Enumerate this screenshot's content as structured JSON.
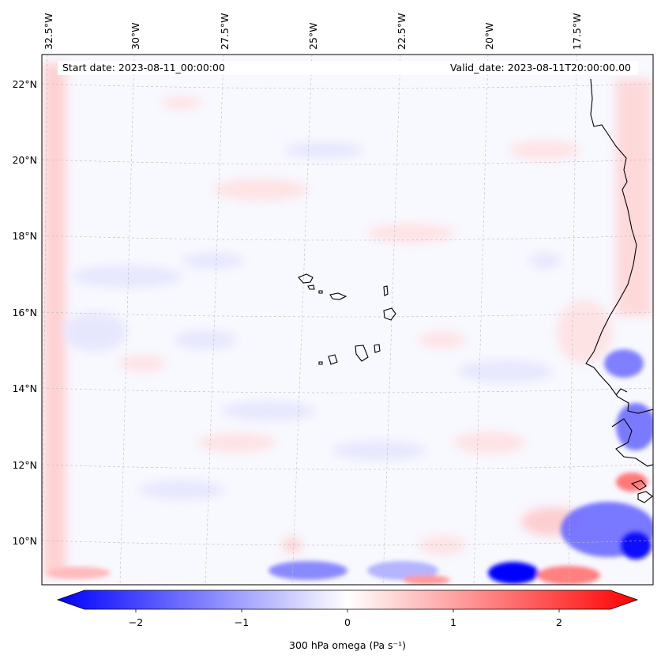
{
  "map": {
    "start_date": "Start date: 2023-08-11_00:00:00",
    "valid_date": "Valid_date: 2023-08-11T20:00:00.00",
    "lon_labels": [
      "32.5°W",
      "30°W",
      "27.5°W",
      "25°W",
      "22.5°W",
      "20°W",
      "17.5°W"
    ],
    "lat_labels": [
      "22°N",
      "20°N",
      "18°N",
      "16°N",
      "14°N",
      "12°N",
      "10°N"
    ],
    "colorbar": {
      "label": "300 hPa omega (Pa s⁻¹)",
      "ticks": [
        "−2",
        "−1",
        "0",
        "1",
        "2"
      ],
      "range": [
        -2.6,
        2.6
      ],
      "cmap": "bwr",
      "low_color": "#0000ff",
      "mid_color": "#ffffff",
      "high_color": "#ff0000"
    },
    "field_features": [
      {
        "type": "strong-ascent",
        "color": "#0000ff"
      },
      {
        "type": "strong-descent",
        "color": "#ff0000"
      }
    ],
    "coastline_color": "#000000",
    "gridline_color": "#bbbbbb"
  }
}
